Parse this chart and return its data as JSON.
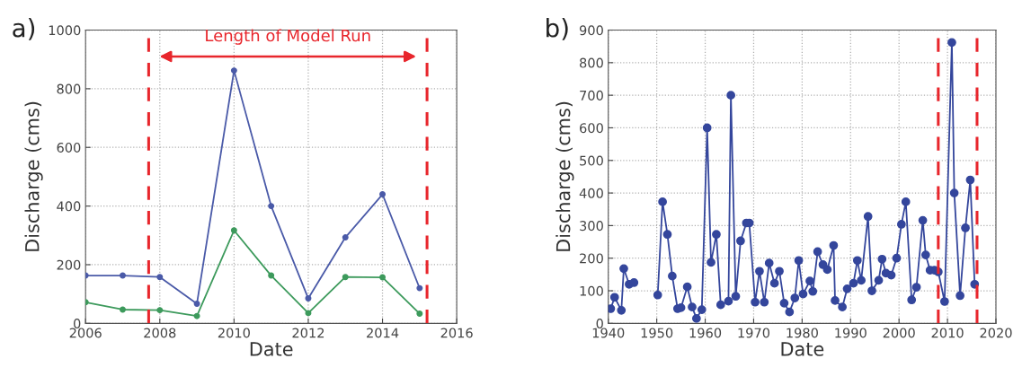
{
  "chart_data": [
    {
      "type": "line",
      "title": "a)",
      "xlabel": "Date",
      "ylabel": "Discharge (cms)",
      "xlim": [
        2006,
        2016
      ],
      "xticks": [
        2006,
        2008,
        2010,
        2012,
        2014,
        2016
      ],
      "ylim": [
        0,
        1000
      ],
      "yticks": [
        0,
        200,
        400,
        600,
        800,
        1000
      ],
      "grid": true,
      "marker": "circle",
      "line_style": "solid",
      "x": [
        2006,
        2007,
        2008,
        2009,
        2010,
        2011,
        2012,
        2013,
        2014,
        2015
      ],
      "series": [
        {
          "color": "#4a5aa8",
          "values": [
            163,
            163,
            158,
            67,
            862,
            400,
            85,
            293,
            440,
            120
          ]
        },
        {
          "color": "#3d9a5c",
          "values": [
            72,
            47,
            45,
            25,
            317,
            163,
            35,
            158,
            157,
            33
          ]
        }
      ],
      "ref_lines": [
        {
          "axis": "x",
          "value": 2007.7,
          "color": "#e8262c",
          "line_style": "dashed"
        },
        {
          "axis": "x",
          "value": 2015.2,
          "color": "#e8262c",
          "line_style": "dashed"
        }
      ],
      "annotations": [
        "Length of Model Run"
      ]
    },
    {
      "type": "line",
      "title": "b)",
      "xlabel": "Date",
      "ylabel": "Discharge (cms)",
      "xlim": [
        1940,
        2020
      ],
      "xticks": [
        1940,
        1950,
        1960,
        1970,
        1980,
        1990,
        2000,
        2010,
        2020
      ],
      "ylim": [
        0,
        900
      ],
      "yticks": [
        0,
        100,
        200,
        300,
        400,
        500,
        600,
        700,
        800,
        900
      ],
      "grid": true,
      "marker": "circle",
      "line_style": "solid",
      "x": [
        1940.5,
        1941.3,
        1942.7,
        1943.2,
        1944.3,
        1945.3,
        1947.7,
        1950.2,
        1951.2,
        1952.2,
        1953.2,
        1954.3,
        1955.0,
        1956.3,
        1957.3,
        1958.2,
        1959.3,
        1960.4,
        1961.2,
        1962.3,
        1963.2,
        1964.8,
        1965.3,
        1966.3,
        1967.3,
        1968.5,
        1969.1,
        1970.3,
        1971.2,
        1972.2,
        1973.2,
        1974.3,
        1975.3,
        1976.3,
        1977.4,
        1978.5,
        1979.3,
        1980.2,
        1981.6,
        1982.2,
        1983.2,
        1984.3,
        1985.2,
        1986.5,
        1986.8,
        1988.3,
        1989.3,
        1990.6,
        1991.4,
        1992.2,
        1993.6,
        1994.4,
        1995.8,
        1996.5,
        1997.3,
        1998.4,
        1999.5,
        2000.5,
        2001.4,
        2002.6,
        2003.6,
        2004.9,
        2005.5,
        2006.4,
        2007.3,
        2008.1,
        2009.4,
        2010.9,
        2011.4,
        2012.6,
        2013.7,
        2014.7,
        2015.6
      ],
      "series": [
        {
          "color": "#34469c",
          "values": [
            45,
            80,
            40,
            168,
            120,
            125,
            null,
            87,
            373,
            273,
            145,
            45,
            48,
            112,
            50,
            15,
            42,
            600,
            187,
            273,
            57,
            68,
            700,
            83,
            253,
            308,
            308,
            65,
            160,
            65,
            185,
            123,
            160,
            62,
            35,
            78,
            193,
            90,
            130,
            98,
            220,
            180,
            165,
            239,
            70,
            50,
            106,
            123,
            193,
            132,
            328,
            100,
            132,
            197,
            154,
            148,
            200,
            304,
            373,
            72,
            111,
            316,
            210,
            163,
            163,
            158,
            67,
            862,
            400,
            85,
            293,
            440,
            120
          ]
        }
      ],
      "ref_lines": [
        {
          "axis": "x",
          "value": 2008.1,
          "color": "#e8262c",
          "line_style": "dashed"
        },
        {
          "axis": "x",
          "value": 2016.1,
          "color": "#e8262c",
          "line_style": "dashed"
        }
      ]
    }
  ]
}
